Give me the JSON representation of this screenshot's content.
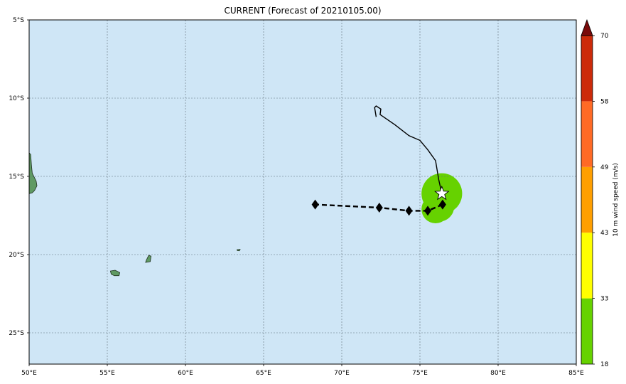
{
  "title": "CURRENT (Forecast of 20210105.00)",
  "map": {
    "lon_range": [
      50,
      85
    ],
    "lat_range": [
      -27,
      -5
    ],
    "ocean_color": "#cfe6f6",
    "land_color": "#5f9a63",
    "grid": true,
    "x_ticks": [
      {
        "lon": 50,
        "label": "50°E"
      },
      {
        "lon": 55,
        "label": "55°E"
      },
      {
        "lon": 60,
        "label": "60°E"
      },
      {
        "lon": 65,
        "label": "65°E"
      },
      {
        "lon": 70,
        "label": "70°E"
      },
      {
        "lon": 75,
        "label": "75°E"
      },
      {
        "lon": 80,
        "label": "80°E"
      },
      {
        "lon": 85,
        "label": "85°E"
      }
    ],
    "y_ticks": [
      {
        "lat": -5,
        "label": "5°S"
      },
      {
        "lat": -10,
        "label": "10°S"
      },
      {
        "lat": -15,
        "label": "15°S"
      },
      {
        "lat": -20,
        "label": "20°S"
      },
      {
        "lat": -25,
        "label": "25°S"
      }
    ],
    "islands": [
      {
        "name": "madagascar-coast",
        "coords": [
          [
            50.0,
            -13.5
          ],
          [
            50.1,
            -13.6
          ],
          [
            50.15,
            -14.3
          ],
          [
            50.2,
            -14.8
          ],
          [
            50.45,
            -15.3
          ],
          [
            50.5,
            -15.6
          ],
          [
            50.35,
            -15.9
          ],
          [
            50.2,
            -16.05
          ],
          [
            50.0,
            -16.1
          ]
        ]
      },
      {
        "name": "reunion",
        "coords": [
          [
            55.2,
            -21.05
          ],
          [
            55.5,
            -21.0
          ],
          [
            55.8,
            -21.15
          ],
          [
            55.75,
            -21.35
          ],
          [
            55.45,
            -21.35
          ],
          [
            55.25,
            -21.25
          ]
        ]
      },
      {
        "name": "mauritius",
        "coords": [
          [
            57.5,
            -20.35
          ],
          [
            57.65,
            -20.05
          ],
          [
            57.8,
            -20.1
          ],
          [
            57.75,
            -20.45
          ],
          [
            57.45,
            -20.5
          ]
        ]
      },
      {
        "name": "rodrigues",
        "coords": [
          [
            63.3,
            -19.68
          ],
          [
            63.5,
            -19.67
          ],
          [
            63.45,
            -19.76
          ],
          [
            63.32,
            -19.75
          ]
        ]
      }
    ]
  },
  "chart_data": {
    "type": "map",
    "observed_track": {
      "color": "#000000",
      "points": [
        [
          72.2,
          -11.2
        ],
        [
          72.1,
          -10.6
        ],
        [
          72.2,
          -10.5
        ],
        [
          72.5,
          -10.7
        ],
        [
          72.45,
          -11.05
        ],
        [
          73.4,
          -11.7
        ],
        [
          74.3,
          -12.4
        ],
        [
          75.0,
          -12.7
        ],
        [
          75.5,
          -13.3
        ],
        [
          76.0,
          -14.0
        ],
        [
          76.2,
          -15.2
        ],
        [
          76.4,
          -16.1
        ]
      ]
    },
    "forecast_track": {
      "color": "#000000",
      "points": [
        [
          76.45,
          -16.8
        ],
        [
          75.5,
          -17.2
        ],
        [
          74.3,
          -17.2
        ],
        [
          72.4,
          -17.0
        ],
        [
          68.3,
          -16.8
        ]
      ]
    },
    "forecast_markers": [
      [
        76.45,
        -16.8
      ],
      [
        75.5,
        -17.2
      ],
      [
        74.3,
        -17.2
      ],
      [
        72.4,
        -17.0
      ],
      [
        68.3,
        -16.8
      ]
    ],
    "current_position": {
      "lon": 76.4,
      "lat": -16.1
    },
    "wind_swaths": [
      {
        "lon": 76.4,
        "lat": -16.1,
        "radius_deg": 1.3,
        "color": "#66d200"
      },
      {
        "lon": 76.0,
        "lat": -17.1,
        "radius_deg": 0.9,
        "color": "#66d200"
      },
      {
        "lon": 76.2,
        "lat": -16.9,
        "radius_deg": 1.0,
        "color": "#66d200"
      }
    ],
    "colorbar": {
      "label": "10 m wind speed (m/s)",
      "levels": [
        "18",
        "33",
        "43",
        "49",
        "58",
        "70"
      ],
      "colors": [
        "#66d200",
        "#ffff00",
        "#ff9f00",
        "#ff6a25",
        "#cc2a0a"
      ],
      "extend_color": "#7a0a0a"
    }
  }
}
